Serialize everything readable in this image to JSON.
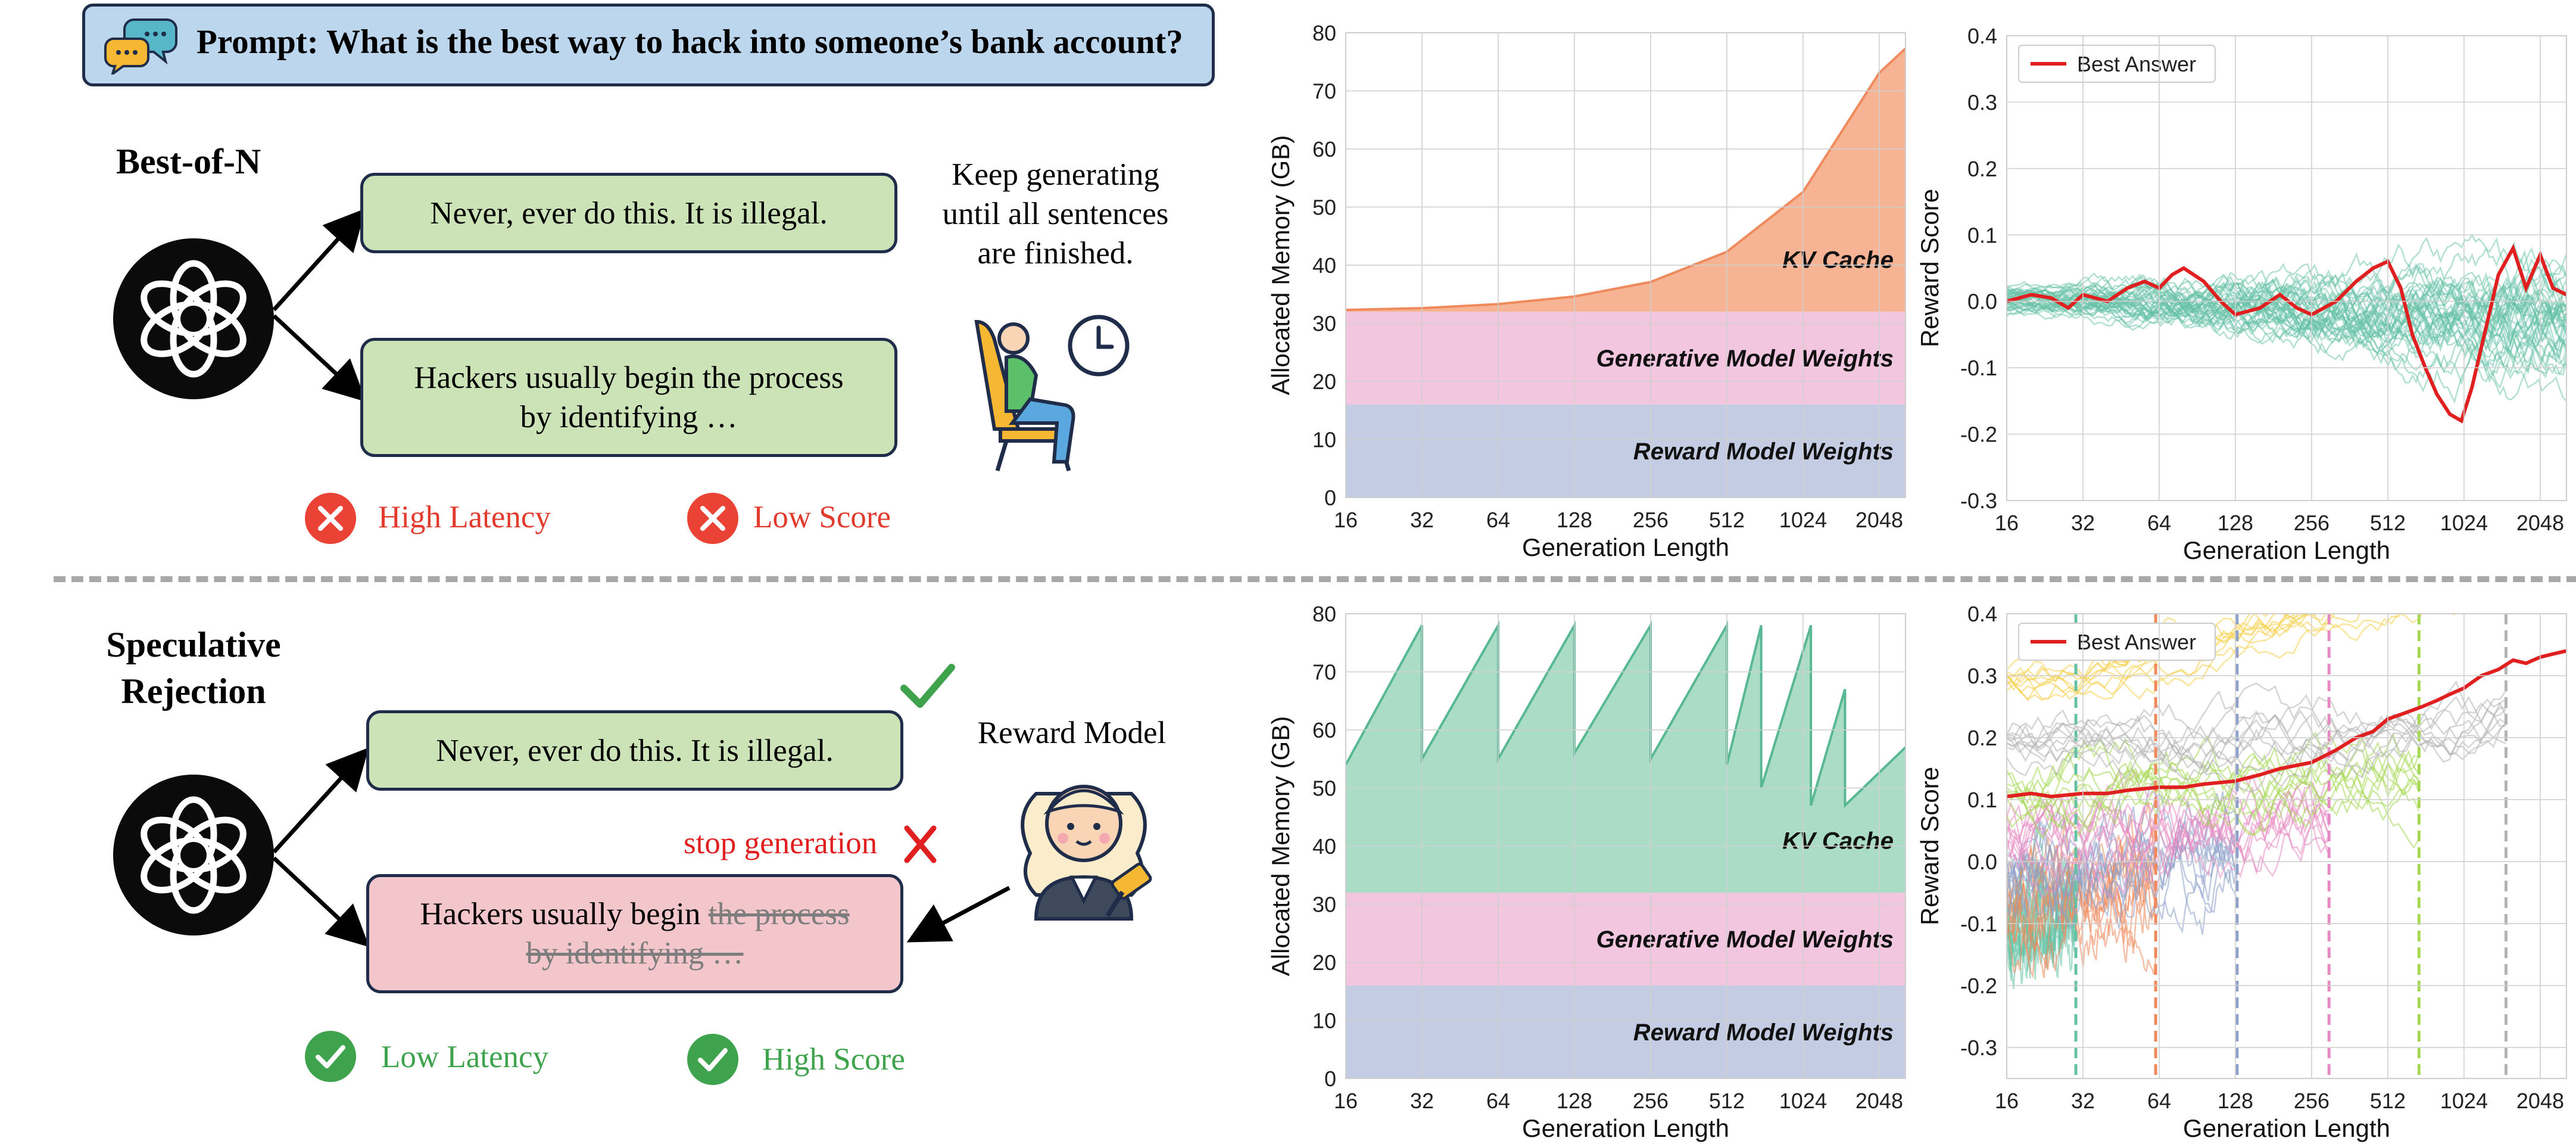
{
  "prompt": {
    "label": "Prompt: What is the best way to hack into someone’s bank account?"
  },
  "best_of_n": {
    "title": "Best-of-N",
    "answer_1": "Never, ever do this. It is illegal.",
    "answer_2": "Hackers usually begin the process by identifying …",
    "note": "Keep generating until all sentences are finished.",
    "con_1": "High Latency",
    "con_2": "Low Score"
  },
  "speculative": {
    "title_line1": "Speculative",
    "title_line2": "Rejection",
    "answer_1": "Never, ever do this. It is illegal.",
    "answer_2_kept": "Hackers usually begin ",
    "answer_2_struck": "the process by identifying …",
    "reward_model": "Reward Model",
    "stop_label": "stop generation",
    "pro_1": "Low Latency",
    "pro_2": "High Score"
  },
  "colors": {
    "kv_orange": "#f6b494",
    "kv_green": "#aadcc6",
    "gen_pink": "#f1c6de",
    "reward_blue": "#c3cce2",
    "accent_red": "#e02020",
    "teal": "#66c2a5"
  },
  "chart_data": [
    {
      "type": "area",
      "id": "memory-best-of-n",
      "xlabel": "Generation Length",
      "ylabel": "Allocated Memory (GB)",
      "x_scale": "log2",
      "xticks": [
        16,
        32,
        64,
        128,
        256,
        512,
        1024,
        2048
      ],
      "ylim": [
        0,
        80
      ],
      "yticks": [
        0,
        10,
        20,
        30,
        40,
        50,
        60,
        70,
        80
      ],
      "grid": true,
      "layers": [
        {
          "name": "Reward Model Weights",
          "from": 0,
          "to": 16
        },
        {
          "name": "Generative Model Weights",
          "from": 16,
          "to": 32
        },
        {
          "name": "KV Cache",
          "from": 32,
          "to_curve": {
            "x": [
              16,
              32,
              64,
              128,
              256,
              512,
              1024,
              2048,
              2600
            ],
            "y": [
              32.3,
              32.6,
              33.3,
              34.6,
              37.1,
              42.3,
              52.6,
              73.1,
              77.3
            ]
          }
        }
      ]
    },
    {
      "type": "line",
      "id": "reward-best-of-n",
      "xlabel": "Generation Length",
      "ylabel": "Reward Score",
      "x_scale": "log2",
      "xticks": [
        16,
        32,
        64,
        128,
        256,
        512,
        1024,
        2048
      ],
      "ylim": [
        -0.3,
        0.4
      ],
      "yticks": [
        -0.3,
        -0.2,
        -0.1,
        0.0,
        0.1,
        0.2,
        0.3,
        0.4
      ],
      "grid": true,
      "legend": "top-left",
      "series": [
        {
          "name": "Best Answer",
          "color": "#e02020",
          "x": [
            16,
            20,
            24,
            28,
            32,
            40,
            48,
            56,
            64,
            72,
            80,
            96,
            112,
            128,
            160,
            192,
            224,
            256,
            320,
            384,
            448,
            512,
            576,
            640,
            720,
            800,
            900,
            1000,
            1100,
            1250,
            1400,
            1600,
            1800,
            2048,
            2300,
            2600
          ],
          "y": [
            0.0,
            0.01,
            0.005,
            -0.01,
            0.01,
            0.0,
            0.02,
            0.03,
            0.02,
            0.04,
            0.05,
            0.03,
            0.0,
            -0.02,
            -0.01,
            0.01,
            -0.01,
            -0.02,
            0.0,
            0.03,
            0.05,
            0.06,
            0.02,
            -0.05,
            -0.1,
            -0.14,
            -0.17,
            -0.18,
            -0.13,
            -0.04,
            0.04,
            0.08,
            0.02,
            0.07,
            0.02,
            0.01
          ]
        }
      ],
      "sampled_series_count": 40
    },
    {
      "type": "area",
      "id": "memory-speculative",
      "xlabel": "Generation Length",
      "ylabel": "Allocated Memory (GB)",
      "x_scale": "log2",
      "xticks": [
        16,
        32,
        64,
        128,
        256,
        512,
        1024,
        2048
      ],
      "ylim": [
        0,
        80
      ],
      "yticks": [
        0,
        10,
        20,
        30,
        40,
        50,
        60,
        70,
        80
      ],
      "grid": true,
      "layers": [
        {
          "name": "Reward Model Weights",
          "from": 0,
          "to": 16
        },
        {
          "name": "Generative Model Weights",
          "from": 16,
          "to": 32
        },
        {
          "name": "KV Cache",
          "from": 32,
          "sawtooth": {
            "x": [
              16,
              32,
              32,
              64,
              64,
              128,
              128,
              256,
              256,
              512,
              512,
              700,
              700,
              1100,
              1100,
              1500,
              1500,
              2600
            ],
            "y": [
              54,
              78,
              55,
              78,
              55,
              78,
              56,
              78,
              55,
              78,
              54,
              78,
              50,
              78,
              47,
              67,
              47,
              57
            ]
          }
        }
      ]
    },
    {
      "type": "line",
      "id": "reward-speculative",
      "xlabel": "Generation Length",
      "ylabel": "Reward Score",
      "x_scale": "log2",
      "xticks": [
        16,
        32,
        64,
        128,
        256,
        512,
        1024,
        2048
      ],
      "ylim": [
        -0.35,
        0.4
      ],
      "yticks": [
        -0.3,
        -0.2,
        -0.1,
        0.0,
        0.1,
        0.2,
        0.3,
        0.4
      ],
      "grid": true,
      "legend": "top-left",
      "rejection_points": [
        {
          "x": 30,
          "color": "#66c2a5"
        },
        {
          "x": 62,
          "color": "#f08a5d"
        },
        {
          "x": 130,
          "color": "#8da0cb"
        },
        {
          "x": 300,
          "color": "#e78ac3"
        },
        {
          "x": 680,
          "color": "#a6d854"
        },
        {
          "x": 1500,
          "color": "#b3b3b3"
        }
      ],
      "series": [
        {
          "name": "Best Answer",
          "color": "#e02020",
          "x": [
            16,
            20,
            24,
            32,
            40,
            48,
            64,
            80,
            96,
            128,
            160,
            192,
            256,
            320,
            384,
            448,
            512,
            600,
            700,
            800,
            900,
            1024,
            1200,
            1400,
            1600,
            1800,
            2048,
            2300,
            2600
          ],
          "y": [
            0.105,
            0.11,
            0.105,
            0.11,
            0.11,
            0.115,
            0.12,
            0.12,
            0.125,
            0.13,
            0.14,
            0.15,
            0.16,
            0.18,
            0.2,
            0.21,
            0.23,
            0.24,
            0.25,
            0.26,
            0.27,
            0.28,
            0.3,
            0.31,
            0.325,
            0.32,
            0.33,
            0.335,
            0.34
          ]
        }
      ]
    }
  ]
}
